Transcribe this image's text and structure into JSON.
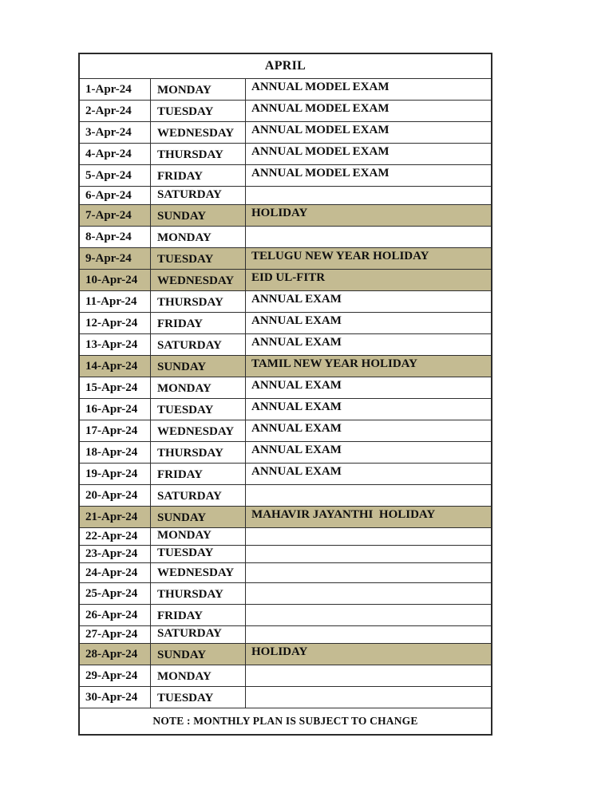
{
  "document": {
    "month_title": "APRIL",
    "footer_note": "NOTE : MONTHLY PLAN IS SUBJECT TO CHANGE"
  },
  "colors": {
    "holiday_highlight": "#C4BB92",
    "border": "#2B2B2B",
    "text": "#0F0F0F",
    "background": "#FFFFFF"
  },
  "table": {
    "columns": [
      "date",
      "day",
      "event"
    ],
    "rows": [
      {
        "date": "1-Apr-24",
        "day": "MONDAY",
        "event": "ANNUAL MODEL EXAM",
        "highlight": false
      },
      {
        "date": "2-Apr-24",
        "day": "TUESDAY",
        "event": "ANNUAL MODEL EXAM",
        "highlight": false
      },
      {
        "date": "3-Apr-24",
        "day": "WEDNESDAY",
        "event": "ANNUAL MODEL EXAM",
        "highlight": false
      },
      {
        "date": "4-Apr-24",
        "day": "THURSDAY",
        "event": "ANNUAL MODEL EXAM",
        "highlight": false
      },
      {
        "date": "5-Apr-24",
        "day": "FRIDAY",
        "event": "ANNUAL MODEL EXAM",
        "highlight": false
      },
      {
        "date": "6-Apr-24",
        "day": "SATURDAY",
        "event": "",
        "highlight": false
      },
      {
        "date": "7-Apr-24",
        "day": "SUNDAY",
        "event": "HOLIDAY",
        "highlight": true
      },
      {
        "date": "8-Apr-24",
        "day": "MONDAY",
        "event": "",
        "highlight": false
      },
      {
        "date": "9-Apr-24",
        "day": "TUESDAY",
        "event": "TELUGU NEW YEAR HOLIDAY",
        "highlight": true
      },
      {
        "date": "10-Apr-24",
        "day": "WEDNESDAY",
        "event": "EID UL-FITR",
        "highlight": true
      },
      {
        "date": "11-Apr-24",
        "day": "THURSDAY",
        "event": "ANNUAL EXAM",
        "highlight": false
      },
      {
        "date": "12-Apr-24",
        "day": "FRIDAY",
        "event": "ANNUAL EXAM",
        "highlight": false
      },
      {
        "date": "13-Apr-24",
        "day": "SATURDAY",
        "event": "ANNUAL EXAM",
        "highlight": false
      },
      {
        "date": "14-Apr-24",
        "day": "SUNDAY",
        "event": "TAMIL NEW YEAR HOLIDAY",
        "highlight": true
      },
      {
        "date": "15-Apr-24",
        "day": "MONDAY",
        "event": "ANNUAL EXAM",
        "highlight": false
      },
      {
        "date": "16-Apr-24",
        "day": "TUESDAY",
        "event": "ANNUAL EXAM",
        "highlight": false
      },
      {
        "date": "17-Apr-24",
        "day": "WEDNESDAY",
        "event": "ANNUAL EXAM",
        "highlight": false
      },
      {
        "date": "18-Apr-24",
        "day": "THURSDAY",
        "event": "ANNUAL EXAM",
        "highlight": false
      },
      {
        "date": "19-Apr-24",
        "day": "FRIDAY",
        "event": "ANNUAL EXAM",
        "highlight": false
      },
      {
        "date": "20-Apr-24",
        "day": "SATURDAY",
        "event": "",
        "highlight": false
      },
      {
        "date": "21-Apr-24",
        "day": "SUNDAY",
        "event": "MAHAVIR JAYANTHI  HOLIDAY",
        "highlight": true
      },
      {
        "date": "22-Apr-24",
        "day": "MONDAY",
        "event": "",
        "highlight": false
      },
      {
        "date": "23-Apr-24",
        "day": "TUESDAY",
        "event": "",
        "highlight": false
      },
      {
        "date": "24-Apr-24",
        "day": "WEDNESDAY",
        "event": "",
        "highlight": false
      },
      {
        "date": "25-Apr-24",
        "day": "THURSDAY",
        "event": "",
        "highlight": false
      },
      {
        "date": "26-Apr-24",
        "day": "FRIDAY",
        "event": "",
        "highlight": false
      },
      {
        "date": "27-Apr-24",
        "day": "SATURDAY",
        "event": "",
        "highlight": false
      },
      {
        "date": "28-Apr-24",
        "day": "SUNDAY",
        "event": "HOLIDAY",
        "highlight": true
      },
      {
        "date": "29-Apr-24",
        "day": "MONDAY",
        "event": "",
        "highlight": false
      },
      {
        "date": "30-Apr-24",
        "day": "TUESDAY",
        "event": "",
        "highlight": false
      }
    ]
  }
}
